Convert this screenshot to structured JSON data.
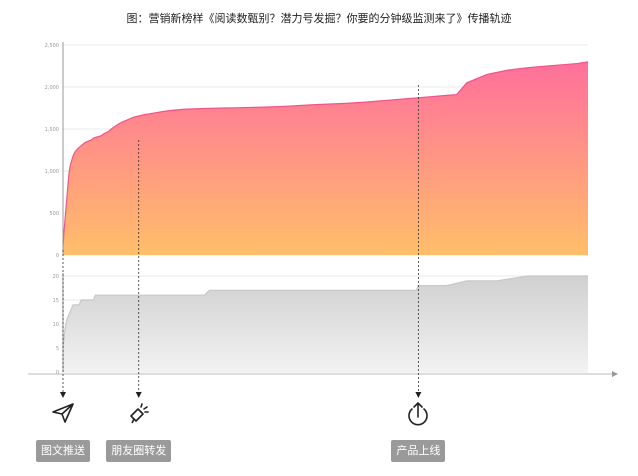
{
  "title": "图：营销新榜样《阅读数甄别？潜力号发掘？你要的分钟级监测来了》传播轨迹",
  "colors": {
    "area_top": "#ff6f9c",
    "area_bottom": "#ffbe6a",
    "lower_area": "#d4d4d4",
    "axis": "#999999",
    "grid": "#e8e8e8",
    "label_bg": "#9a9a9a"
  },
  "chart_data": [
    {
      "type": "area",
      "name": "upper",
      "ylim": [
        0,
        2500
      ],
      "yticks": [
        "0",
        "500",
        "1,000",
        "1,500",
        "2,000",
        "2,500"
      ],
      "ytick_values": [
        0,
        500,
        1000,
        1500,
        2000,
        2500
      ],
      "x": [
        0,
        1,
        2,
        3,
        4,
        5,
        6,
        7,
        8,
        10,
        12,
        15,
        18,
        20,
        22,
        25,
        28,
        30,
        32,
        35,
        38,
        40,
        45,
        50,
        55,
        60,
        70,
        80,
        90,
        100,
        110,
        120,
        130,
        140,
        150,
        160,
        170,
        180,
        200,
        220,
        250,
        280,
        300,
        310,
        320,
        340,
        350,
        360,
        370,
        380,
        390,
        400,
        420,
        440,
        460,
        480,
        500,
        510,
        520
      ],
      "values": [
        100,
        280,
        420,
        560,
        700,
        850,
        980,
        1050,
        1100,
        1180,
        1230,
        1270,
        1300,
        1320,
        1340,
        1355,
        1370,
        1390,
        1400,
        1410,
        1420,
        1440,
        1470,
        1520,
        1560,
        1590,
        1640,
        1670,
        1690,
        1710,
        1725,
        1735,
        1740,
        1745,
        1748,
        1750,
        1752,
        1755,
        1760,
        1770,
        1790,
        1805,
        1820,
        1830,
        1840,
        1860,
        1870,
        1880,
        1890,
        1900,
        1910,
        2050,
        2150,
        2200,
        2230,
        2250,
        2270,
        2280,
        2300
      ]
    },
    {
      "type": "area",
      "name": "lower",
      "ylim": [
        0,
        20
      ],
      "yticks": [
        "0",
        "5",
        "10",
        "15",
        "20"
      ],
      "ytick_values": [
        0,
        5,
        10,
        15,
        20
      ],
      "x": [
        0,
        1,
        2,
        3,
        4,
        6,
        8,
        10,
        12,
        14,
        16,
        18,
        20,
        22,
        24,
        26,
        28,
        30,
        32,
        35,
        38,
        40,
        140,
        145,
        250,
        300,
        350,
        352,
        380,
        400,
        430,
        460,
        520
      ],
      "values": [
        5,
        7,
        9,
        10,
        11,
        12,
        13,
        14,
        14,
        14,
        14,
        15,
        15,
        15,
        15,
        15,
        15,
        15,
        16,
        16,
        16,
        16,
        16,
        17,
        17,
        17,
        17,
        18,
        18,
        19,
        19,
        20,
        20
      ]
    }
  ],
  "events": [
    {
      "label": "图文推送",
      "icon": "paper-plane-icon",
      "x": 0
    },
    {
      "label": "朋友圈转发",
      "icon": "megaphone-icon",
      "x": 75
    },
    {
      "label": "产品上线",
      "icon": "upload-icon",
      "x": 352
    }
  ]
}
